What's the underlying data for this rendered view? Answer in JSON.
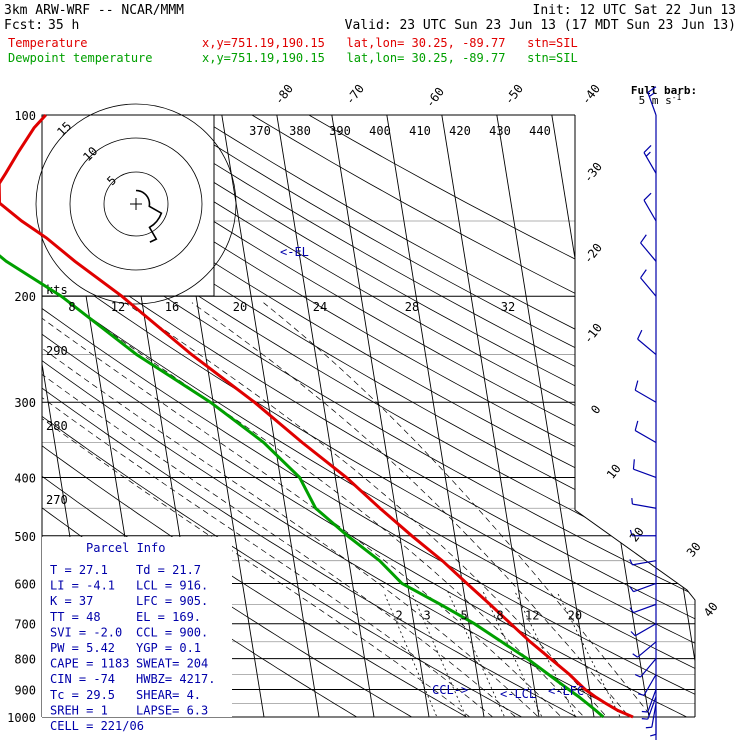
{
  "header": {
    "model": "3km ARW-WRF -- NCAR/MMM",
    "init": "Init: 12 UTC Sat 22 Jun 13",
    "fcst_label": "Fcst:",
    "fcst_value": "35 h",
    "valid": "Valid: 23 UTC Sun 23 Jun 13 (17 MDT Sun 23 Jun 13)",
    "temp_label": "Temperature",
    "dew_label": "Dewpoint temperature",
    "location": "x,y=751.19,190.15   lat,lon= 30.25, -89.77   stn=SIL",
    "temp_color": "#e00000",
    "dew_color": "#00a000"
  },
  "barb_key": {
    "title": "Full barb:",
    "value": "5 m s",
    "exp": "-1"
  },
  "parcel_info": {
    "title": "Parcel Info",
    "rows": [
      [
        "T  =   27.1",
        "Td =  21.7"
      ],
      [
        "LI =   -4.1",
        "LCL =  916."
      ],
      [
        "K  =     37",
        "LFC =  905."
      ],
      [
        "TT =     48",
        "EL  =  169."
      ],
      [
        "SVI =  -2.0",
        "CCL =  900."
      ],
      [
        "PW =   5.42",
        "YGP =   0.1"
      ],
      [
        "CAPE =  1183",
        "SWEAT=  204"
      ],
      [
        "CIN =   -74",
        "HWBZ= 4217."
      ],
      [
        "Tc =   29.5",
        "SHEAR=   4."
      ],
      [
        "SREH =     1",
        "LAPSE=  6.3"
      ],
      [
        "CELL = 221/06",
        ""
      ]
    ]
  },
  "chart_data": {
    "type": "line",
    "title": "",
    "diagram": "skew-T log-p",
    "y_axis": {
      "label": "",
      "ticks": [
        100,
        200,
        300,
        400,
        500,
        600,
        700,
        800,
        900,
        1000
      ],
      "range": [
        1000,
        100
      ],
      "scale": "log",
      "unit": "hPa"
    },
    "isotherm_labels": [
      -80,
      -70,
      -60,
      -50,
      -40,
      -30,
      -20,
      -10,
      0,
      10,
      20,
      30,
      40
    ],
    "theta_labels": [
      370,
      380,
      390,
      400,
      410,
      420,
      430,
      440
    ],
    "theta_side_labels": [
      290,
      280,
      270
    ],
    "mixing_ratio_labels": [
      2,
      3,
      5,
      8,
      12,
      20
    ],
    "hodograph_speed_labels": [
      8,
      12,
      16,
      20,
      24,
      28,
      32
    ],
    "hodograph_units": "kts",
    "levels_annotations": [
      {
        "text": "<-EL",
        "p": 169
      },
      {
        "text": "CCL->",
        "p": 900
      },
      {
        "text": "<-LCL",
        "p": 916
      },
      {
        "text": "<-LFC",
        "p": 905
      }
    ],
    "series": [
      {
        "name": "Temperature",
        "color": "#e00000",
        "p": [
          1000,
          975,
          950,
          925,
          900,
          875,
          850,
          800,
          750,
          700,
          650,
          600,
          550,
          500,
          450,
          400,
          350,
          300,
          250,
          200,
          175,
          160,
          150,
          140,
          130,
          125,
          115,
          105,
          100
        ],
        "t": [
          27.1,
          24.5,
          22.6,
          20.8,
          19.2,
          18.0,
          16.8,
          13.8,
          10.6,
          7.6,
          4.4,
          0.8,
          -3.0,
          -7.8,
          -12.8,
          -18.0,
          -25.0,
          -32.5,
          -42.5,
          -53.5,
          -61.0,
          -65.5,
          -69.5,
          -73.0,
          -72.5,
          -71.0,
          -68.0,
          -64.5,
          -62.0
        ]
      },
      {
        "name": "Dewpoint temperature",
        "color": "#00a000",
        "p": [
          1000,
          975,
          950,
          925,
          900,
          875,
          850,
          800,
          750,
          700,
          650,
          600,
          550,
          500,
          450,
          400,
          350,
          300,
          250,
          200,
          175,
          160,
          150,
          140,
          130,
          120,
          110,
          105,
          100
        ],
        "t": [
          21.7,
          20.5,
          19.2,
          17.8,
          16.2,
          14.6,
          13.0,
          9.6,
          5.4,
          1.0,
          -4.6,
          -11.0,
          -14.4,
          -19.5,
          -24.5,
          -26.5,
          -32.0,
          -40.5,
          -52.5,
          -64.5,
          -73.5,
          -78.0,
          -80.5,
          -84.0,
          -85.5,
          -86.0,
          -85.0,
          -84.0,
          -83.0
        ]
      }
    ],
    "wind_profile": {
      "p": [
        1000,
        975,
        950,
        925,
        900,
        850,
        800,
        750,
        700,
        650,
        600,
        550,
        500,
        450,
        400,
        350,
        300,
        250,
        200,
        175,
        150,
        125,
        100
      ],
      "speed": [
        5,
        5,
        5,
        5,
        5,
        5,
        5,
        5,
        5,
        5,
        5,
        5,
        5,
        5,
        10,
        10,
        10,
        10,
        10,
        10,
        10,
        15,
        15
      ],
      "dir": [
        180,
        180,
        190,
        200,
        200,
        210,
        220,
        230,
        240,
        250,
        250,
        260,
        270,
        280,
        290,
        300,
        300,
        310,
        320,
        320,
        330,
        330,
        340
      ]
    }
  }
}
